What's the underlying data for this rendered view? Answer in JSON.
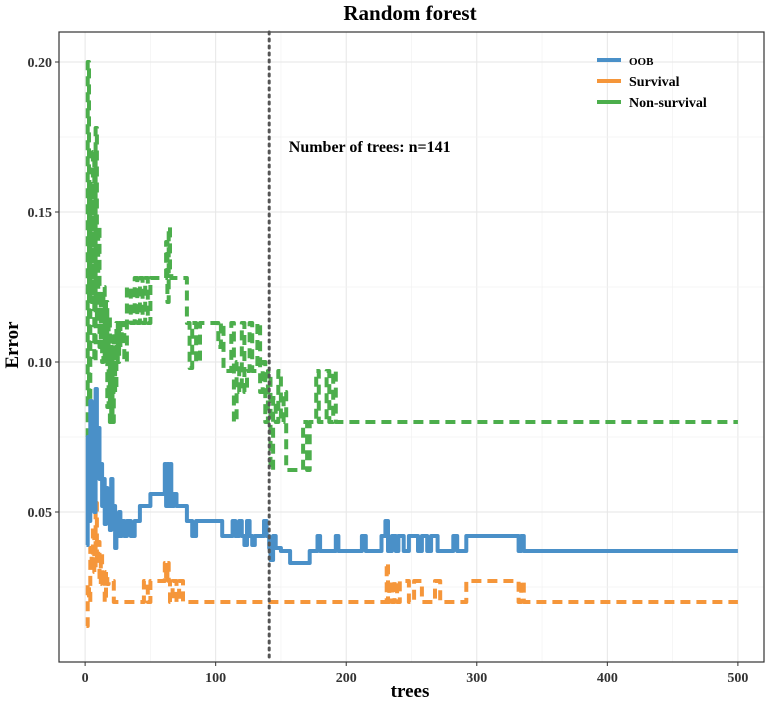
{
  "chart_data": {
    "type": "line",
    "title": "Random forest",
    "xlabel": "trees",
    "ylabel": "Error",
    "xlim": [
      -20,
      520
    ],
    "ylim": [
      0.0,
      0.21
    ],
    "x_ticks": [
      0,
      100,
      200,
      300,
      400,
      500
    ],
    "x_tick_labels": [
      "0",
      "100",
      "200",
      "300",
      "400",
      "500"
    ],
    "y_ticks": [
      0.05,
      0.1,
      0.15,
      0.2
    ],
    "y_tick_labels": [
      "0.05",
      "0.10",
      "0.15",
      "0.20"
    ],
    "grid": true,
    "legend_position": "top-right",
    "vline": {
      "x": 141,
      "style": "dotted",
      "color": "#555555"
    },
    "annotation": {
      "text": "Number of trees: n=141",
      "x": 156,
      "y": 0.17
    },
    "series": [
      {
        "name": "OOB",
        "color": "#4a90c8",
        "dash": "solid",
        "points": [
          [
            1,
            0.039
          ],
          [
            2,
            0.075
          ],
          [
            3,
            0.047
          ],
          [
            4,
            0.087
          ],
          [
            5,
            0.06
          ],
          [
            6,
            0.08
          ],
          [
            7,
            0.05
          ],
          [
            8,
            0.091
          ],
          [
            9,
            0.07
          ],
          [
            10,
            0.078
          ],
          [
            11,
            0.061
          ],
          [
            12,
            0.066
          ],
          [
            13,
            0.052
          ],
          [
            14,
            0.061
          ],
          [
            15,
            0.046
          ],
          [
            16,
            0.058
          ],
          [
            17,
            0.049
          ],
          [
            18,
            0.056
          ],
          [
            19,
            0.044
          ],
          [
            20,
            0.061
          ],
          [
            21,
            0.047
          ],
          [
            22,
            0.052
          ],
          [
            23,
            0.038
          ],
          [
            24,
            0.047
          ],
          [
            25,
            0.042
          ],
          [
            26,
            0.05
          ],
          [
            27,
            0.042
          ],
          [
            28,
            0.047
          ],
          [
            30,
            0.042
          ],
          [
            32,
            0.047
          ],
          [
            35,
            0.042
          ],
          [
            38,
            0.047
          ],
          [
            42,
            0.052
          ],
          [
            48,
            0.052
          ],
          [
            50,
            0.056
          ],
          [
            55,
            0.056
          ],
          [
            60,
            0.056
          ],
          [
            61,
            0.066
          ],
          [
            62,
            0.052
          ],
          [
            63,
            0.066
          ],
          [
            64,
            0.052
          ],
          [
            65,
            0.066
          ],
          [
            66,
            0.052
          ],
          [
            68,
            0.056
          ],
          [
            70,
            0.052
          ],
          [
            75,
            0.052
          ],
          [
            78,
            0.047
          ],
          [
            82,
            0.042
          ],
          [
            85,
            0.047
          ],
          [
            100,
            0.047
          ],
          [
            105,
            0.042
          ],
          [
            110,
            0.042
          ],
          [
            113,
            0.047
          ],
          [
            115,
            0.042
          ],
          [
            118,
            0.047
          ],
          [
            120,
            0.042
          ],
          [
            122,
            0.039
          ],
          [
            124,
            0.047
          ],
          [
            126,
            0.042
          ],
          [
            128,
            0.039
          ],
          [
            130,
            0.042
          ],
          [
            135,
            0.042
          ],
          [
            137,
            0.047
          ],
          [
            139,
            0.042
          ],
          [
            141,
            0.038
          ],
          [
            142,
            0.034
          ],
          [
            144,
            0.042
          ],
          [
            146,
            0.038
          ],
          [
            150,
            0.037
          ],
          [
            155,
            0.037
          ],
          [
            157,
            0.033
          ],
          [
            170,
            0.033
          ],
          [
            172,
            0.037
          ],
          [
            176,
            0.037
          ],
          [
            178,
            0.042
          ],
          [
            180,
            0.037
          ],
          [
            190,
            0.037
          ],
          [
            192,
            0.042
          ],
          [
            194,
            0.037
          ],
          [
            200,
            0.037
          ],
          [
            210,
            0.037
          ],
          [
            212,
            0.042
          ],
          [
            215,
            0.037
          ],
          [
            225,
            0.037
          ],
          [
            227,
            0.042
          ],
          [
            230,
            0.047
          ],
          [
            232,
            0.037
          ],
          [
            235,
            0.042
          ],
          [
            238,
            0.037
          ],
          [
            240,
            0.042
          ],
          [
            244,
            0.037
          ],
          [
            248,
            0.042
          ],
          [
            252,
            0.042
          ],
          [
            255,
            0.037
          ],
          [
            258,
            0.042
          ],
          [
            262,
            0.037
          ],
          [
            265,
            0.042
          ],
          [
            270,
            0.037
          ],
          [
            280,
            0.037
          ],
          [
            282,
            0.042
          ],
          [
            285,
            0.037
          ],
          [
            290,
            0.037
          ],
          [
            292,
            0.042
          ],
          [
            330,
            0.042
          ],
          [
            332,
            0.037
          ],
          [
            334,
            0.042
          ],
          [
            336,
            0.037
          ],
          [
            340,
            0.037
          ],
          [
            500,
            0.037
          ]
        ]
      },
      {
        "name": "Survival",
        "color": "#f5963a",
        "dash": "dashed",
        "points": [
          [
            1,
            0.012
          ],
          [
            2,
            0.026
          ],
          [
            3,
            0.02
          ],
          [
            4,
            0.038
          ],
          [
            5,
            0.033
          ],
          [
            6,
            0.045
          ],
          [
            7,
            0.03
          ],
          [
            8,
            0.053
          ],
          [
            9,
            0.033
          ],
          [
            10,
            0.04
          ],
          [
            11,
            0.026
          ],
          [
            12,
            0.036
          ],
          [
            13,
            0.026
          ],
          [
            14,
            0.03
          ],
          [
            15,
            0.02
          ],
          [
            16,
            0.03
          ],
          [
            17,
            0.026
          ],
          [
            18,
            0.027
          ],
          [
            20,
            0.027
          ],
          [
            22,
            0.02
          ],
          [
            40,
            0.02
          ],
          [
            45,
            0.027
          ],
          [
            48,
            0.02
          ],
          [
            50,
            0.027
          ],
          [
            60,
            0.027
          ],
          [
            61,
            0.033
          ],
          [
            62,
            0.027
          ],
          [
            63,
            0.033
          ],
          [
            64,
            0.027
          ],
          [
            65,
            0.02
          ],
          [
            67,
            0.027
          ],
          [
            70,
            0.02
          ],
          [
            72,
            0.027
          ],
          [
            75,
            0.02
          ],
          [
            78,
            0.02
          ],
          [
            230,
            0.02
          ],
          [
            231,
            0.033
          ],
          [
            232,
            0.02
          ],
          [
            233,
            0.027
          ],
          [
            235,
            0.02
          ],
          [
            237,
            0.027
          ],
          [
            239,
            0.02
          ],
          [
            241,
            0.027
          ],
          [
            245,
            0.027
          ],
          [
            248,
            0.02
          ],
          [
            252,
            0.027
          ],
          [
            258,
            0.02
          ],
          [
            265,
            0.02
          ],
          [
            268,
            0.027
          ],
          [
            272,
            0.02
          ],
          [
            290,
            0.02
          ],
          [
            292,
            0.027
          ],
          [
            330,
            0.027
          ],
          [
            332,
            0.02
          ],
          [
            334,
            0.027
          ],
          [
            336,
            0.02
          ],
          [
            500,
            0.02
          ]
        ]
      },
      {
        "name": "Non-survival",
        "color": "#4cae4c",
        "dash": "dashed",
        "points": [
          [
            1,
            0.075
          ],
          [
            2,
            0.2
          ],
          [
            3,
            0.087
          ],
          [
            4,
            0.16
          ],
          [
            5,
            0.12
          ],
          [
            6,
            0.17
          ],
          [
            7,
            0.1
          ],
          [
            8,
            0.178
          ],
          [
            9,
            0.113
          ],
          [
            10,
            0.145
          ],
          [
            11,
            0.105
          ],
          [
            12,
            0.12
          ],
          [
            13,
            0.1
          ],
          [
            14,
            0.125
          ],
          [
            15,
            0.1
          ],
          [
            16,
            0.12
          ],
          [
            17,
            0.085
          ],
          [
            18,
            0.115
          ],
          [
            19,
            0.08
          ],
          [
            20,
            0.105
          ],
          [
            21,
            0.08
          ],
          [
            22,
            0.11
          ],
          [
            23,
            0.09
          ],
          [
            24,
            0.113
          ],
          [
            25,
            0.1
          ],
          [
            26,
            0.113
          ],
          [
            27,
            0.105
          ],
          [
            28,
            0.113
          ],
          [
            30,
            0.1
          ],
          [
            32,
            0.125
          ],
          [
            35,
            0.113
          ],
          [
            38,
            0.128
          ],
          [
            40,
            0.113
          ],
          [
            42,
            0.128
          ],
          [
            44,
            0.113
          ],
          [
            46,
            0.128
          ],
          [
            48,
            0.113
          ],
          [
            50,
            0.128
          ],
          [
            60,
            0.128
          ],
          [
            62,
            0.14
          ],
          [
            63,
            0.12
          ],
          [
            64,
            0.145
          ],
          [
            65,
            0.13
          ],
          [
            66,
            0.128
          ],
          [
            70,
            0.128
          ],
          [
            75,
            0.128
          ],
          [
            78,
            0.113
          ],
          [
            80,
            0.098
          ],
          [
            82,
            0.113
          ],
          [
            85,
            0.1
          ],
          [
            88,
            0.113
          ],
          [
            100,
            0.113
          ],
          [
            102,
            0.105
          ],
          [
            104,
            0.113
          ],
          [
            106,
            0.097
          ],
          [
            110,
            0.097
          ],
          [
            112,
            0.113
          ],
          [
            114,
            0.08
          ],
          [
            116,
            0.1
          ],
          [
            118,
            0.09
          ],
          [
            120,
            0.113
          ],
          [
            122,
            0.09
          ],
          [
            124,
            0.097
          ],
          [
            126,
            0.113
          ],
          [
            128,
            0.097
          ],
          [
            130,
            0.097
          ],
          [
            132,
            0.113
          ],
          [
            134,
            0.09
          ],
          [
            136,
            0.1
          ],
          [
            138,
            0.08
          ],
          [
            140,
            0.097
          ],
          [
            142,
            0.064
          ],
          [
            144,
            0.088
          ],
          [
            146,
            0.08
          ],
          [
            148,
            0.097
          ],
          [
            150,
            0.08
          ],
          [
            152,
            0.09
          ],
          [
            154,
            0.064
          ],
          [
            165,
            0.064
          ],
          [
            167,
            0.08
          ],
          [
            170,
            0.064
          ],
          [
            172,
            0.08
          ],
          [
            175,
            0.08
          ],
          [
            177,
            0.097
          ],
          [
            179,
            0.08
          ],
          [
            182,
            0.08
          ],
          [
            185,
            0.097
          ],
          [
            187,
            0.08
          ],
          [
            190,
            0.097
          ],
          [
            192,
            0.08
          ],
          [
            500,
            0.08
          ]
        ]
      }
    ]
  }
}
